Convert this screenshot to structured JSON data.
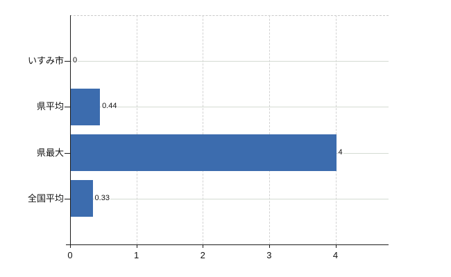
{
  "chart": {
    "background": "#ffffff",
    "bar_color": "#3c6cae",
    "h_grid_color": "#d4dbd2",
    "v_grid_color": "#d2d2d2",
    "top_border_color": "#c9c9c9",
    "axis_color": "#1a1a1a",
    "text_color": "#111111"
  },
  "chart_data": {
    "type": "bar",
    "orientation": "horizontal",
    "title": "",
    "xlabel": "",
    "ylabel": "",
    "categories": [
      "いすみ市",
      "県平均",
      "県最大",
      "全国平均"
    ],
    "values": [
      0,
      0.44,
      4,
      0.33
    ],
    "value_labels": [
      "0",
      "0.44",
      "4",
      "0.33"
    ],
    "xticks": [
      0,
      1,
      2,
      3,
      4
    ],
    "xtick_labels": [
      "0",
      "1",
      "2",
      "3",
      "4"
    ],
    "xlim": [
      0,
      4.8
    ],
    "grid": true,
    "legend": false
  }
}
